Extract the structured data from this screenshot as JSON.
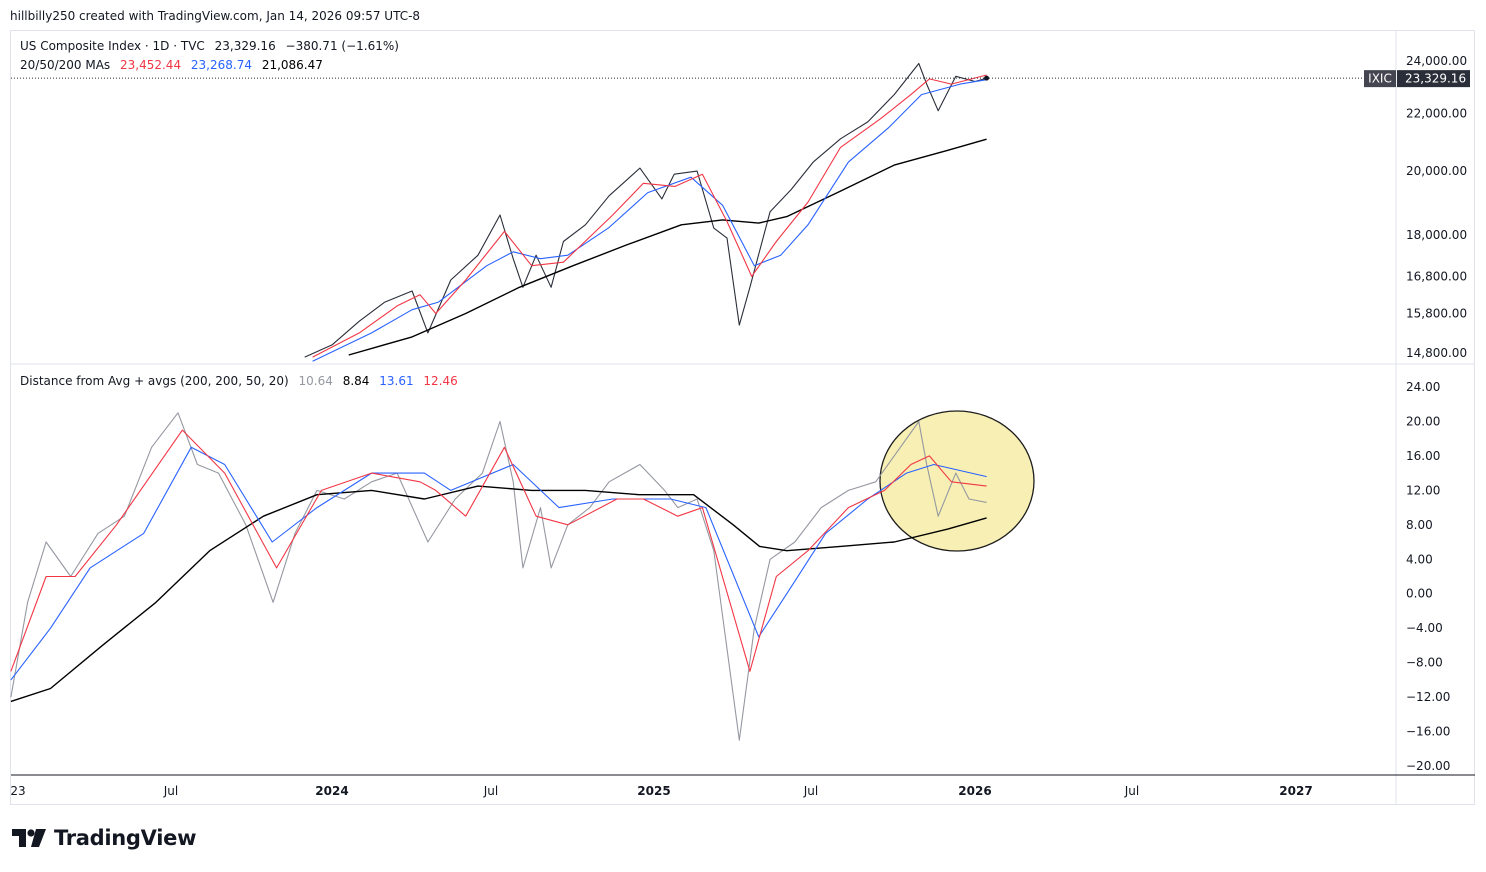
{
  "header": {
    "text": "hillbilly250 created with TradingView.com, Jan 14, 2026 09:57 UTC-8"
  },
  "upper": {
    "title": "US Composite Index · 1D · TVC",
    "price": "23,329.16",
    "change": "−380.71 (−1.61%)",
    "ma_label": "20/50/200 MAs",
    "ma20": "23,452.44",
    "ma50": "23,268.74",
    "ma200": "21,086.47",
    "symbol_tag": "IXIC",
    "price_tag": "23,329.16"
  },
  "lower": {
    "title": "Distance from Avg + avgs (200, 200, 50, 20)",
    "v1": "10.64",
    "v2": "8.84",
    "v3": "13.61",
    "v4": "12.46"
  },
  "brand": {
    "name": "TradingView"
  },
  "colors": {
    "price": "#2a2e39",
    "ma20": "#f23645",
    "ma50": "#2962ff",
    "ma200": "#000000",
    "dist": "#9598a1",
    "highlight_fill": "#f7efb3",
    "tag_bg": "#434651",
    "grid_border": "#e0e3eb"
  },
  "chart_data": [
    {
      "type": "line",
      "title": "US Composite Index · 1D · TVC",
      "y_scale": "log",
      "y_ticks": [
        "24,000.00",
        "22,000.00",
        "20,000.00",
        "18,000.00",
        "16,800.00",
        "15,800.00",
        "14,800.00"
      ],
      "x_ticks": [
        "23",
        "Jul",
        "2024",
        "Jul",
        "2025",
        "Jul",
        "2026",
        "Jul",
        "2027"
      ],
      "series": [
        {
          "name": "US Composite Index",
          "color": "#2a2e39",
          "x": [
            "2023-12-01",
            "2024-01-01",
            "2024-02-01",
            "2024-03-01",
            "2024-04-01",
            "2024-04-19",
            "2024-05-15",
            "2024-06-15",
            "2024-07-10",
            "2024-07-25",
            "2024-08-05",
            "2024-08-20",
            "2024-09-06",
            "2024-09-20",
            "2024-10-15",
            "2024-11-11",
            "2024-12-16",
            "2025-01-10",
            "2025-01-24",
            "2025-02-19",
            "2025-03-10",
            "2025-03-25",
            "2025-04-08",
            "2025-04-20",
            "2025-05-13",
            "2025-06-06",
            "2025-07-01",
            "2025-08-01",
            "2025-09-01",
            "2025-10-01",
            "2025-10-29",
            "2025-11-07",
            "2025-11-20",
            "2025-12-10",
            "2026-01-01",
            "2026-01-14"
          ],
          "y": [
            14700,
            15000,
            15600,
            16100,
            16400,
            15300,
            16700,
            17400,
            18600,
            17300,
            16500,
            17400,
            16500,
            17800,
            18300,
            19200,
            20100,
            19100,
            19900,
            20000,
            18200,
            17900,
            15500,
            16500,
            18700,
            19400,
            20300,
            21100,
            21700,
            22700,
            23900,
            23100,
            22100,
            23400,
            23200,
            23329
          ]
        },
        {
          "name": "20",
          "color": "#f23645",
          "x": [
            "2023-12-10",
            "2024-02-01",
            "2024-03-15",
            "2024-04-10",
            "2024-04-28",
            "2024-06-01",
            "2024-07-15",
            "2024-08-15",
            "2024-09-20",
            "2024-11-15",
            "2024-12-20",
            "2025-01-25",
            "2025-02-25",
            "2025-03-25",
            "2025-04-22",
            "2025-05-20",
            "2025-06-25",
            "2025-08-01",
            "2025-09-15",
            "2025-10-20",
            "2025-11-10",
            "2025-12-05",
            "2026-01-14"
          ],
          "y": [
            14700,
            15300,
            16000,
            16300,
            15800,
            16700,
            18100,
            17100,
            17200,
            18600,
            19600,
            19500,
            19900,
            18400,
            16800,
            17800,
            19000,
            20800,
            21800,
            22700,
            23300,
            23100,
            23452
          ]
        },
        {
          "name": "50",
          "color": "#2962ff",
          "x": [
            "2023-12-10",
            "2024-02-15",
            "2024-04-01",
            "2024-05-01",
            "2024-06-25",
            "2024-07-25",
            "2024-08-25",
            "2024-09-25",
            "2024-11-10",
            "2024-12-25",
            "2025-02-12",
            "2025-03-20",
            "2025-04-25",
            "2025-05-25",
            "2025-06-25",
            "2025-08-10",
            "2025-09-25",
            "2025-11-01",
            "2025-12-15",
            "2026-01-14"
          ],
          "y": [
            14600,
            15300,
            15900,
            16100,
            17100,
            17500,
            17300,
            17400,
            18200,
            19300,
            19800,
            18900,
            17100,
            17400,
            18300,
            20300,
            21500,
            22700,
            23100,
            23269
          ]
        },
        {
          "name": "200",
          "color": "#000000",
          "x": [
            "2024-01-20",
            "2024-04-01",
            "2024-06-01",
            "2024-08-01",
            "2024-10-01",
            "2024-12-01",
            "2025-02-01",
            "2025-03-20",
            "2025-04-30",
            "2025-06-01",
            "2025-08-01",
            "2025-10-01",
            "2025-12-01",
            "2026-01-14"
          ],
          "y": [
            14750,
            15200,
            15800,
            16500,
            17100,
            17700,
            18300,
            18450,
            18350,
            18550,
            19350,
            20200,
            20700,
            21086
          ]
        }
      ]
    },
    {
      "type": "line",
      "title": "Distance from Avg + avgs (200, 200, 50, 20)",
      "y_ticks": [
        "24.00",
        "20.00",
        "16.00",
        "12.00",
        "8.00",
        "4.00",
        "0.00",
        "−4.00",
        "−8.00",
        "−12.00",
        "−16.00",
        "−20.00"
      ],
      "x_ticks": [
        "23",
        "Jul",
        "2024",
        "Jul",
        "2025",
        "Jul",
        "2026",
        "Jul",
        "2027"
      ],
      "annotation": "ellipse highlighting Oct 2025 – Jan 2026",
      "series": [
        {
          "name": "Distance",
          "color": "#9598a1",
          "x": [
            "2023-01-01",
            "2023-01-20",
            "2023-02-10",
            "2023-03-10",
            "2023-04-10",
            "2023-05-10",
            "2023-06-10",
            "2023-07-10",
            "2023-08-01",
            "2023-08-25",
            "2023-09-25",
            "2023-10-26",
            "2023-11-20",
            "2023-12-15",
            "2024-01-15",
            "2024-02-15",
            "2024-03-15",
            "2024-04-19",
            "2024-05-20",
            "2024-06-20",
            "2024-07-10",
            "2024-07-25",
            "2024-08-05",
            "2024-08-25",
            "2024-09-06",
            "2024-09-25",
            "2024-10-20",
            "2024-11-11",
            "2024-12-16",
            "2025-01-13",
            "2025-01-28",
            "2025-02-19",
            "2025-03-10",
            "2025-04-08",
            "2025-04-25",
            "2025-05-13",
            "2025-06-10",
            "2025-07-10",
            "2025-08-10",
            "2025-09-10",
            "2025-10-01",
            "2025-10-29",
            "2025-11-07",
            "2025-11-20",
            "2025-12-10",
            "2025-12-25",
            "2026-01-14"
          ],
          "y": [
            -12,
            -1,
            6,
            2,
            7,
            9,
            17,
            21,
            15,
            14,
            8,
            -1,
            7,
            12,
            11,
            13,
            14,
            6,
            11,
            14,
            20,
            13,
            3,
            10,
            3,
            8,
            10,
            13,
            15,
            12,
            10,
            11,
            5,
            -17,
            -4,
            4,
            6,
            10,
            12,
            13,
            16,
            20,
            15,
            9,
            14,
            11,
            10.6
          ]
        },
        {
          "name": "200",
          "color": "#000000",
          "x": [
            "2023-01-01",
            "2023-02-15",
            "2023-04-15",
            "2023-06-15",
            "2023-08-15",
            "2023-10-15",
            "2023-12-15",
            "2024-02-15",
            "2024-04-15",
            "2024-06-15",
            "2024-08-15",
            "2024-10-15",
            "2024-12-15",
            "2025-02-15",
            "2025-04-01",
            "2025-05-01",
            "2025-06-01",
            "2025-08-01",
            "2025-10-01",
            "2025-12-01",
            "2026-01-14"
          ],
          "y": [
            -12.5,
            -11,
            -6,
            -1,
            5,
            9,
            11.5,
            12,
            11,
            12.5,
            12,
            12,
            11.5,
            11.5,
            8,
            5.5,
            5,
            5.5,
            6,
            7.5,
            8.8
          ]
        },
        {
          "name": "50",
          "color": "#2962ff",
          "x": [
            "2023-01-01",
            "2023-02-15",
            "2023-04-01",
            "2023-06-01",
            "2023-07-25",
            "2023-09-01",
            "2023-10-25",
            "2023-12-15",
            "2024-02-15",
            "2024-04-15",
            "2024-05-15",
            "2024-07-25",
            "2024-09-15",
            "2024-11-15",
            "2025-01-20",
            "2025-03-01",
            "2025-04-30",
            "2025-06-01",
            "2025-07-15",
            "2025-09-01",
            "2025-10-15",
            "2025-11-15",
            "2026-01-14"
          ],
          "y": [
            -10,
            -4,
            3,
            7,
            17,
            15,
            6,
            10,
            14,
            14,
            12,
            15,
            10,
            11,
            11,
            10,
            -5,
            0,
            7,
            11,
            14,
            15,
            13.6
          ]
        },
        {
          "name": "20",
          "color": "#f23645",
          "x": [
            "2023-01-01",
            "2023-02-10",
            "2023-03-15",
            "2023-05-01",
            "2023-07-15",
            "2023-09-01",
            "2023-10-30",
            "2023-12-20",
            "2024-02-15",
            "2024-04-10",
            "2024-04-28",
            "2024-06-01",
            "2024-07-15",
            "2024-08-20",
            "2024-09-25",
            "2024-11-20",
            "2024-12-20",
            "2025-01-28",
            "2025-02-25",
            "2025-04-20",
            "2025-05-20",
            "2025-06-25",
            "2025-08-10",
            "2025-09-20",
            "2025-10-20",
            "2025-11-10",
            "2025-12-05",
            "2026-01-14"
          ],
          "y": [
            -9,
            2,
            2,
            8,
            19,
            14,
            3,
            12,
            14,
            13,
            12,
            9,
            17,
            9,
            8,
            11,
            11,
            9,
            10,
            -9,
            2,
            5,
            10,
            12,
            15,
            16,
            13,
            12.5
          ]
        }
      ]
    }
  ]
}
